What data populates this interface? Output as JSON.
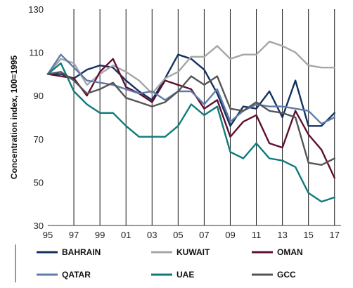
{
  "chart_data": {
    "type": "line",
    "ylabel": "Concentration index, 100=1995",
    "xlabel": "",
    "title": "",
    "xlim": [
      1995,
      2017.5
    ],
    "ylim": [
      30,
      130
    ],
    "x_tick_values": [
      1995,
      1997,
      1999,
      2001,
      2003,
      2005,
      2007,
      2009,
      2011,
      2013,
      2015,
      2017
    ],
    "x_tick_labels": [
      "95",
      "97",
      "99",
      "01",
      "03",
      "05",
      "07",
      "09",
      "11",
      "13",
      "15",
      "17"
    ],
    "y_ticks": [
      30,
      50,
      70,
      90,
      110,
      130
    ],
    "grid": "vertical lines at odd years",
    "legend_position": "bottom",
    "x": [
      1995,
      1996,
      1997,
      1998,
      1999,
      2000,
      2001,
      2002,
      2003,
      2004,
      2005,
      2006,
      2007,
      2008,
      2009,
      2010,
      2011,
      2012,
      2013,
      2014,
      2015,
      2016,
      2017
    ],
    "series": [
      {
        "name": "BAHRAIN",
        "color": "#14305f",
        "values": [
          100,
          100,
          98,
          102,
          104,
          103,
          97,
          92,
          88,
          98,
          109,
          107,
          102,
          91,
          76,
          85,
          84,
          92,
          80,
          97,
          76,
          76,
          82
        ]
      },
      {
        "name": "KUWAIT",
        "color": "#a6a6a6",
        "values": [
          100,
          107,
          105,
          95,
          100,
          104,
          101,
          97,
          91,
          98,
          101,
          108,
          108,
          113,
          107,
          109,
          109,
          115,
          113,
          110,
          104,
          103,
          103
        ]
      },
      {
        "name": "OMAN",
        "color": "#5e1032",
        "values": [
          100,
          99,
          98,
          90,
          101,
          107,
          94,
          91,
          87,
          97,
          95,
          93,
          84,
          88,
          71,
          78,
          81,
          68,
          66,
          83,
          72,
          65,
          52
        ]
      },
      {
        "name": "QATAR",
        "color": "#5f7bab",
        "values": [
          100,
          109,
          103,
          97,
          96,
          95,
          93,
          91,
          92,
          88,
          92,
          92,
          86,
          93,
          78,
          83,
          86,
          85,
          85,
          84,
          83,
          77,
          80
        ]
      },
      {
        "name": "UAE",
        "color": "#0f7a7a",
        "values": [
          100,
          105,
          92,
          86,
          82,
          82,
          76,
          71,
          71,
          71,
          76,
          86,
          81,
          85,
          64,
          61,
          68,
          61,
          60,
          57,
          45,
          41,
          43
        ]
      },
      {
        "name": "GCC",
        "color": "#555555",
        "values": [
          100,
          101,
          97,
          91,
          93,
          96,
          89,
          87,
          85,
          87,
          92,
          99,
          95,
          99,
          84,
          83,
          87,
          83,
          82,
          80,
          59,
          58,
          61
        ]
      }
    ]
  }
}
